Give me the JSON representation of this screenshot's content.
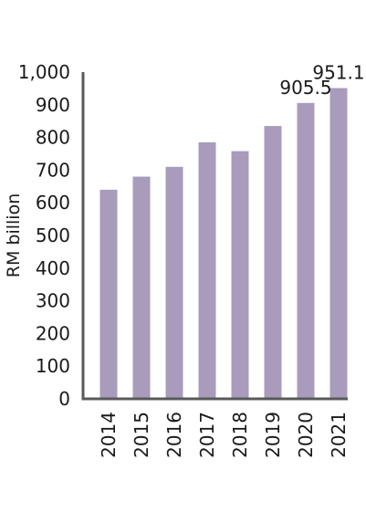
{
  "chart_data": {
    "type": "bar",
    "categories": [
      "2014",
      "2015",
      "2016",
      "2017",
      "2018",
      "2019",
      "2020",
      "2021"
    ],
    "values": [
      640,
      680,
      710,
      785,
      758,
      835,
      905.5,
      951.1
    ],
    "data_labels": [
      "",
      "",
      "",
      "",
      "",
      "",
      "905.5",
      "951.1"
    ],
    "title": "",
    "xlabel": "",
    "ylabel": "RM billion",
    "ylim": [
      0,
      1000
    ],
    "yticks": [
      0,
      100,
      200,
      300,
      400,
      500,
      600,
      700,
      800,
      900,
      1000
    ],
    "ytick_labels": [
      "0",
      "100",
      "200",
      "300",
      "400",
      "500",
      "600",
      "700",
      "800",
      "900",
      "1,000"
    ],
    "grid": false,
    "bar_color": "#a89bbc",
    "axis_color": "#595959"
  }
}
